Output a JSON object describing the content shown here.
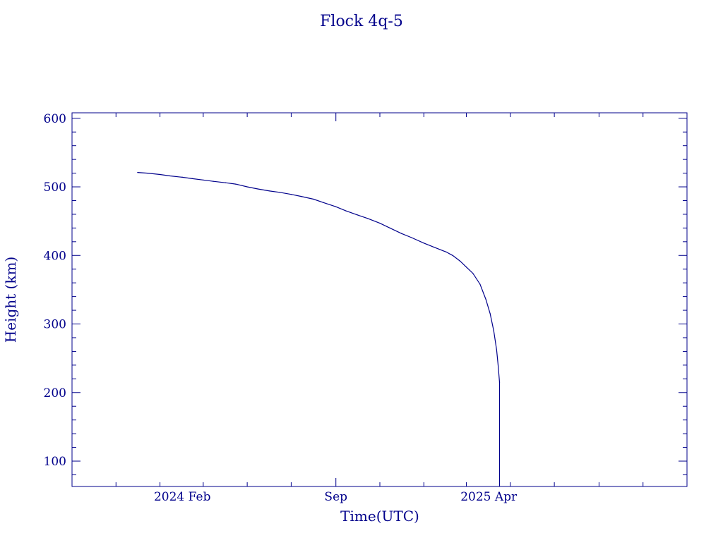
{
  "colors": {
    "ink": "#00008b",
    "background": "#ffffff"
  },
  "chart_data": {
    "type": "line",
    "title": "Flock 4q-5",
    "xlabel": "Time(UTC)",
    "ylabel": "Height (km)",
    "x_axis": {
      "scale": "time",
      "range": [
        "2023-09-01",
        "2026-01-01"
      ],
      "tick_labels": [
        {
          "date": "2024-02-01",
          "label": "2024 Feb"
        },
        {
          "date": "2024-09-01",
          "label": "Sep"
        },
        {
          "date": "2025-04-01",
          "label": "2025 Apr"
        }
      ],
      "minor_tick_interval_months": 2
    },
    "y_axis": {
      "range": [
        63,
        608
      ],
      "tick_labels": [
        100,
        200,
        300,
        400,
        500,
        600
      ],
      "minor_tick_interval": 20
    },
    "grid": false,
    "legend": "none",
    "series": [
      {
        "points": [
          [
            "2023-12-01",
            521
          ],
          [
            "2023-12-15",
            520
          ],
          [
            "2024-01-01",
            518
          ],
          [
            "2024-01-15",
            516
          ],
          [
            "2024-02-01",
            514
          ],
          [
            "2024-02-15",
            512
          ],
          [
            "2024-03-01",
            510
          ],
          [
            "2024-03-15",
            508
          ],
          [
            "2024-04-01",
            506
          ],
          [
            "2024-04-15",
            504
          ],
          [
            "2024-05-01",
            500
          ],
          [
            "2024-05-15",
            497
          ],
          [
            "2024-06-01",
            494
          ],
          [
            "2024-06-15",
            492
          ],
          [
            "2024-07-01",
            489
          ],
          [
            "2024-07-15",
            486
          ],
          [
            "2024-08-01",
            482
          ],
          [
            "2024-08-15",
            477
          ],
          [
            "2024-09-01",
            471
          ],
          [
            "2024-09-15",
            465
          ],
          [
            "2024-10-01",
            459
          ],
          [
            "2024-10-15",
            454
          ],
          [
            "2024-11-01",
            447
          ],
          [
            "2024-11-15",
            440
          ],
          [
            "2024-12-01",
            432
          ],
          [
            "2024-12-15",
            426
          ],
          [
            "2025-01-01",
            418
          ],
          [
            "2025-01-15",
            412
          ],
          [
            "2025-02-01",
            405
          ],
          [
            "2025-02-10",
            400
          ],
          [
            "2025-02-20",
            392
          ],
          [
            "2025-03-01",
            383
          ],
          [
            "2025-03-10",
            374
          ],
          [
            "2025-03-20",
            358
          ],
          [
            "2025-03-28",
            336
          ],
          [
            "2025-04-03",
            315
          ],
          [
            "2025-04-08",
            290
          ],
          [
            "2025-04-12",
            262
          ],
          [
            "2025-04-14",
            240
          ],
          [
            "2025-04-16",
            215
          ],
          [
            "2025-04-16",
            63
          ]
        ]
      }
    ]
  }
}
